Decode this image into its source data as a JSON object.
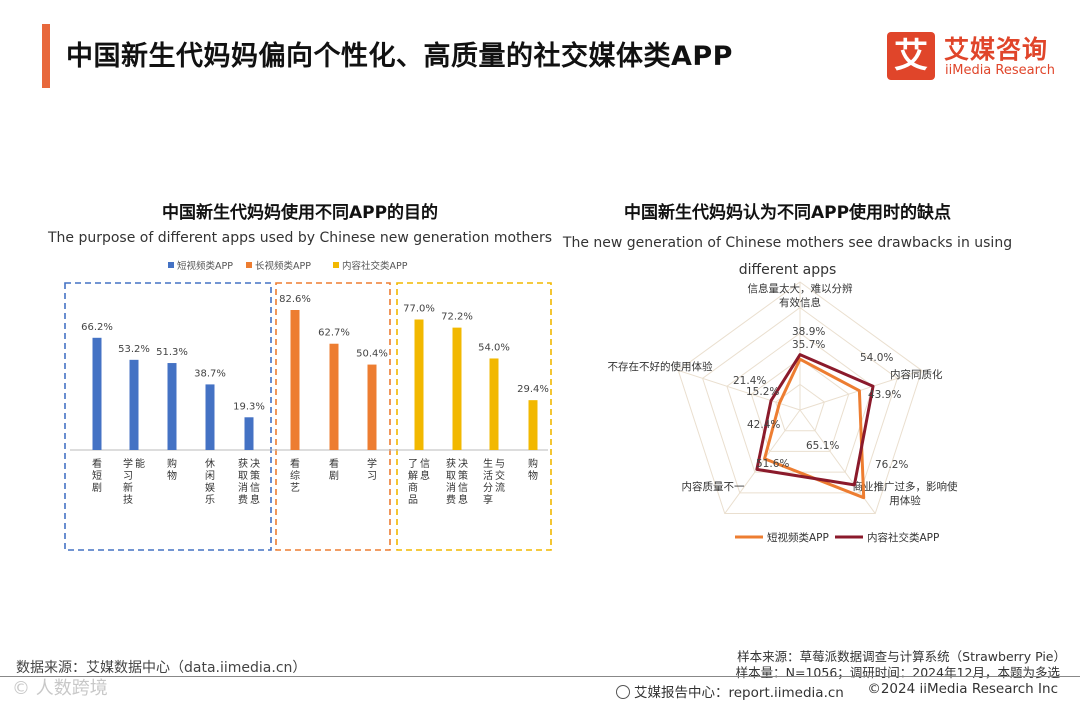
{
  "header": {
    "title": "中国新生代妈妈偏向个性化、高质量的社交媒体类APP",
    "logo_mark": "艾",
    "logo_cn": "艾媒咨询",
    "logo_en": "iiMedia Research"
  },
  "footer": {
    "source_left": "数据来源：艾媒数据中心（data.iimedia.cn）",
    "sample_source": "样本来源：草莓派数据调查与计算系统（Strawberry Pie）",
    "sample_size": "样本量：N=1056；调研时间：2024年12月，本题为多选",
    "report_center": "艾媒报告中心：report.iimedia.cn",
    "copyright": "©2024  iiMedia Research  Inc",
    "watermark": "© 人数跨境"
  },
  "colors": {
    "accent": "#e8683c",
    "short_video": "#4472c4",
    "long_video": "#ed7d31",
    "social": "#f2b800",
    "radar_short": "#ed7d31",
    "radar_social": "#8b1a2b"
  },
  "chart_data": [
    {
      "type": "bar",
      "title": "中国新生代妈妈使用不同APP的目的",
      "subtitle": "The purpose of different apps used by Chinese new generation mothers",
      "legend": [
        "短视频类APP",
        "长视频类APP",
        "内容社交类APP"
      ],
      "legend_placement": "top",
      "grid": false,
      "ylim": [
        0,
        100
      ],
      "groups": [
        {
          "name": "短视频类APP",
          "categories": [
            "看短剧",
            "学习新技能",
            "购物",
            "休闲娱乐",
            "获取消费决策信息"
          ],
          "values": [
            66.2,
            53.2,
            51.3,
            38.7,
            19.3
          ],
          "labels": [
            "66.2%",
            "53.2%",
            "51.3%",
            "38.7%",
            "19.3%"
          ]
        },
        {
          "name": "长视频类APP",
          "categories": [
            "看综艺",
            "看剧",
            "学习"
          ],
          "values": [
            82.6,
            62.7,
            50.4
          ],
          "labels": [
            "82.6%",
            "62.7%",
            "50.4%"
          ]
        },
        {
          "name": "内容社交类APP",
          "categories": [
            "了解商品信息",
            "获取消费决策信息",
            "生活分享与交流",
            "购物"
          ],
          "values": [
            77.0,
            72.2,
            54.0,
            29.4
          ],
          "labels": [
            "77.0%",
            "72.2%",
            "54.0%",
            "29.4%"
          ]
        }
      ]
    },
    {
      "type": "radar",
      "title": "中国新生代妈妈认为不同APP使用时的缺点",
      "subtitle": "The new generation of Chinese mothers see drawbacks in using different apps",
      "axes": [
        "信息量太大，难以分辨有效信息",
        "内容同质化",
        "商业推广过多，影响使用体验",
        "内容质量不一",
        "不存在不好的使用体验"
      ],
      "rlim": [
        0,
        90
      ],
      "grid": true,
      "legend_placement": "bottom",
      "series": [
        {
          "name": "短视频类APP",
          "values": [
            35.7,
            43.9,
            76.2,
            42.4,
            15.2
          ],
          "labels": [
            "35.7%",
            "43.9%",
            "76.2%",
            "42.4%",
            "15.2%"
          ]
        },
        {
          "name": "内容社交类APP",
          "values": [
            38.9,
            54.0,
            65.1,
            51.6,
            21.4
          ],
          "labels": [
            "38.9%",
            "54.0%",
            "65.1%",
            "51.6%",
            "21.4%"
          ]
        }
      ]
    }
  ]
}
